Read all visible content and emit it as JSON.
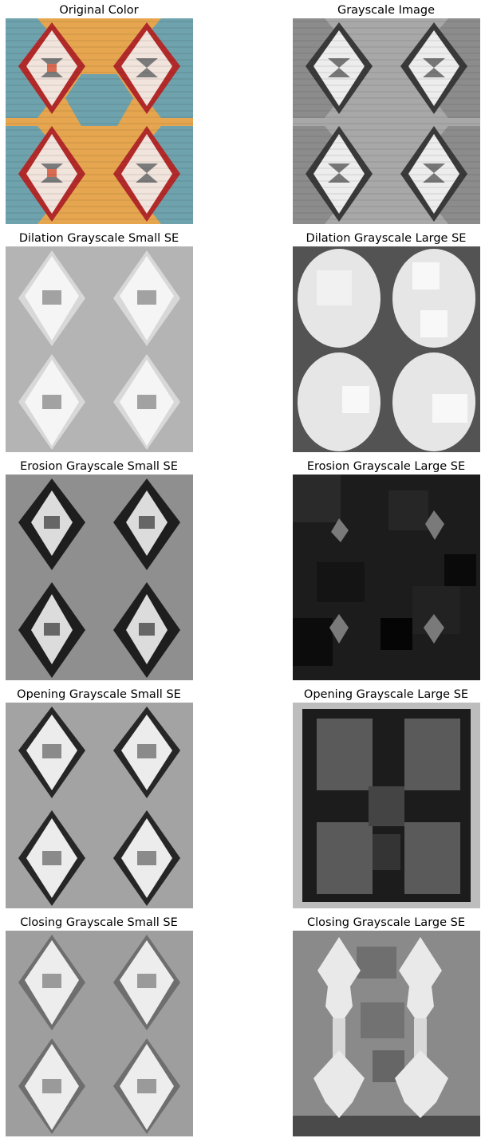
{
  "figure": {
    "panels": [
      {
        "title": "Original Color",
        "image": "kilim-rug-color"
      },
      {
        "title": "Grayscale Image",
        "image": "kilim-rug-grayscale"
      },
      {
        "title": "Dilation Grayscale Small SE",
        "image": "kilim-rug-dilation-small"
      },
      {
        "title": "Dilation Grayscale Large SE",
        "image": "kilim-rug-dilation-large"
      },
      {
        "title": "Erosion Grayscale Small SE",
        "image": "kilim-rug-erosion-small"
      },
      {
        "title": "Erosion Grayscale Large SE",
        "image": "kilim-rug-erosion-large"
      },
      {
        "title": "Opening Grayscale Small SE",
        "image": "kilim-rug-opening-small"
      },
      {
        "title": "Opening Grayscale Large SE",
        "image": "kilim-rug-opening-large"
      },
      {
        "title": "Closing Grayscale Small SE",
        "image": "kilim-rug-closing-small"
      },
      {
        "title": "Closing Grayscale Large SE",
        "image": "kilim-rug-closing-large"
      }
    ]
  }
}
